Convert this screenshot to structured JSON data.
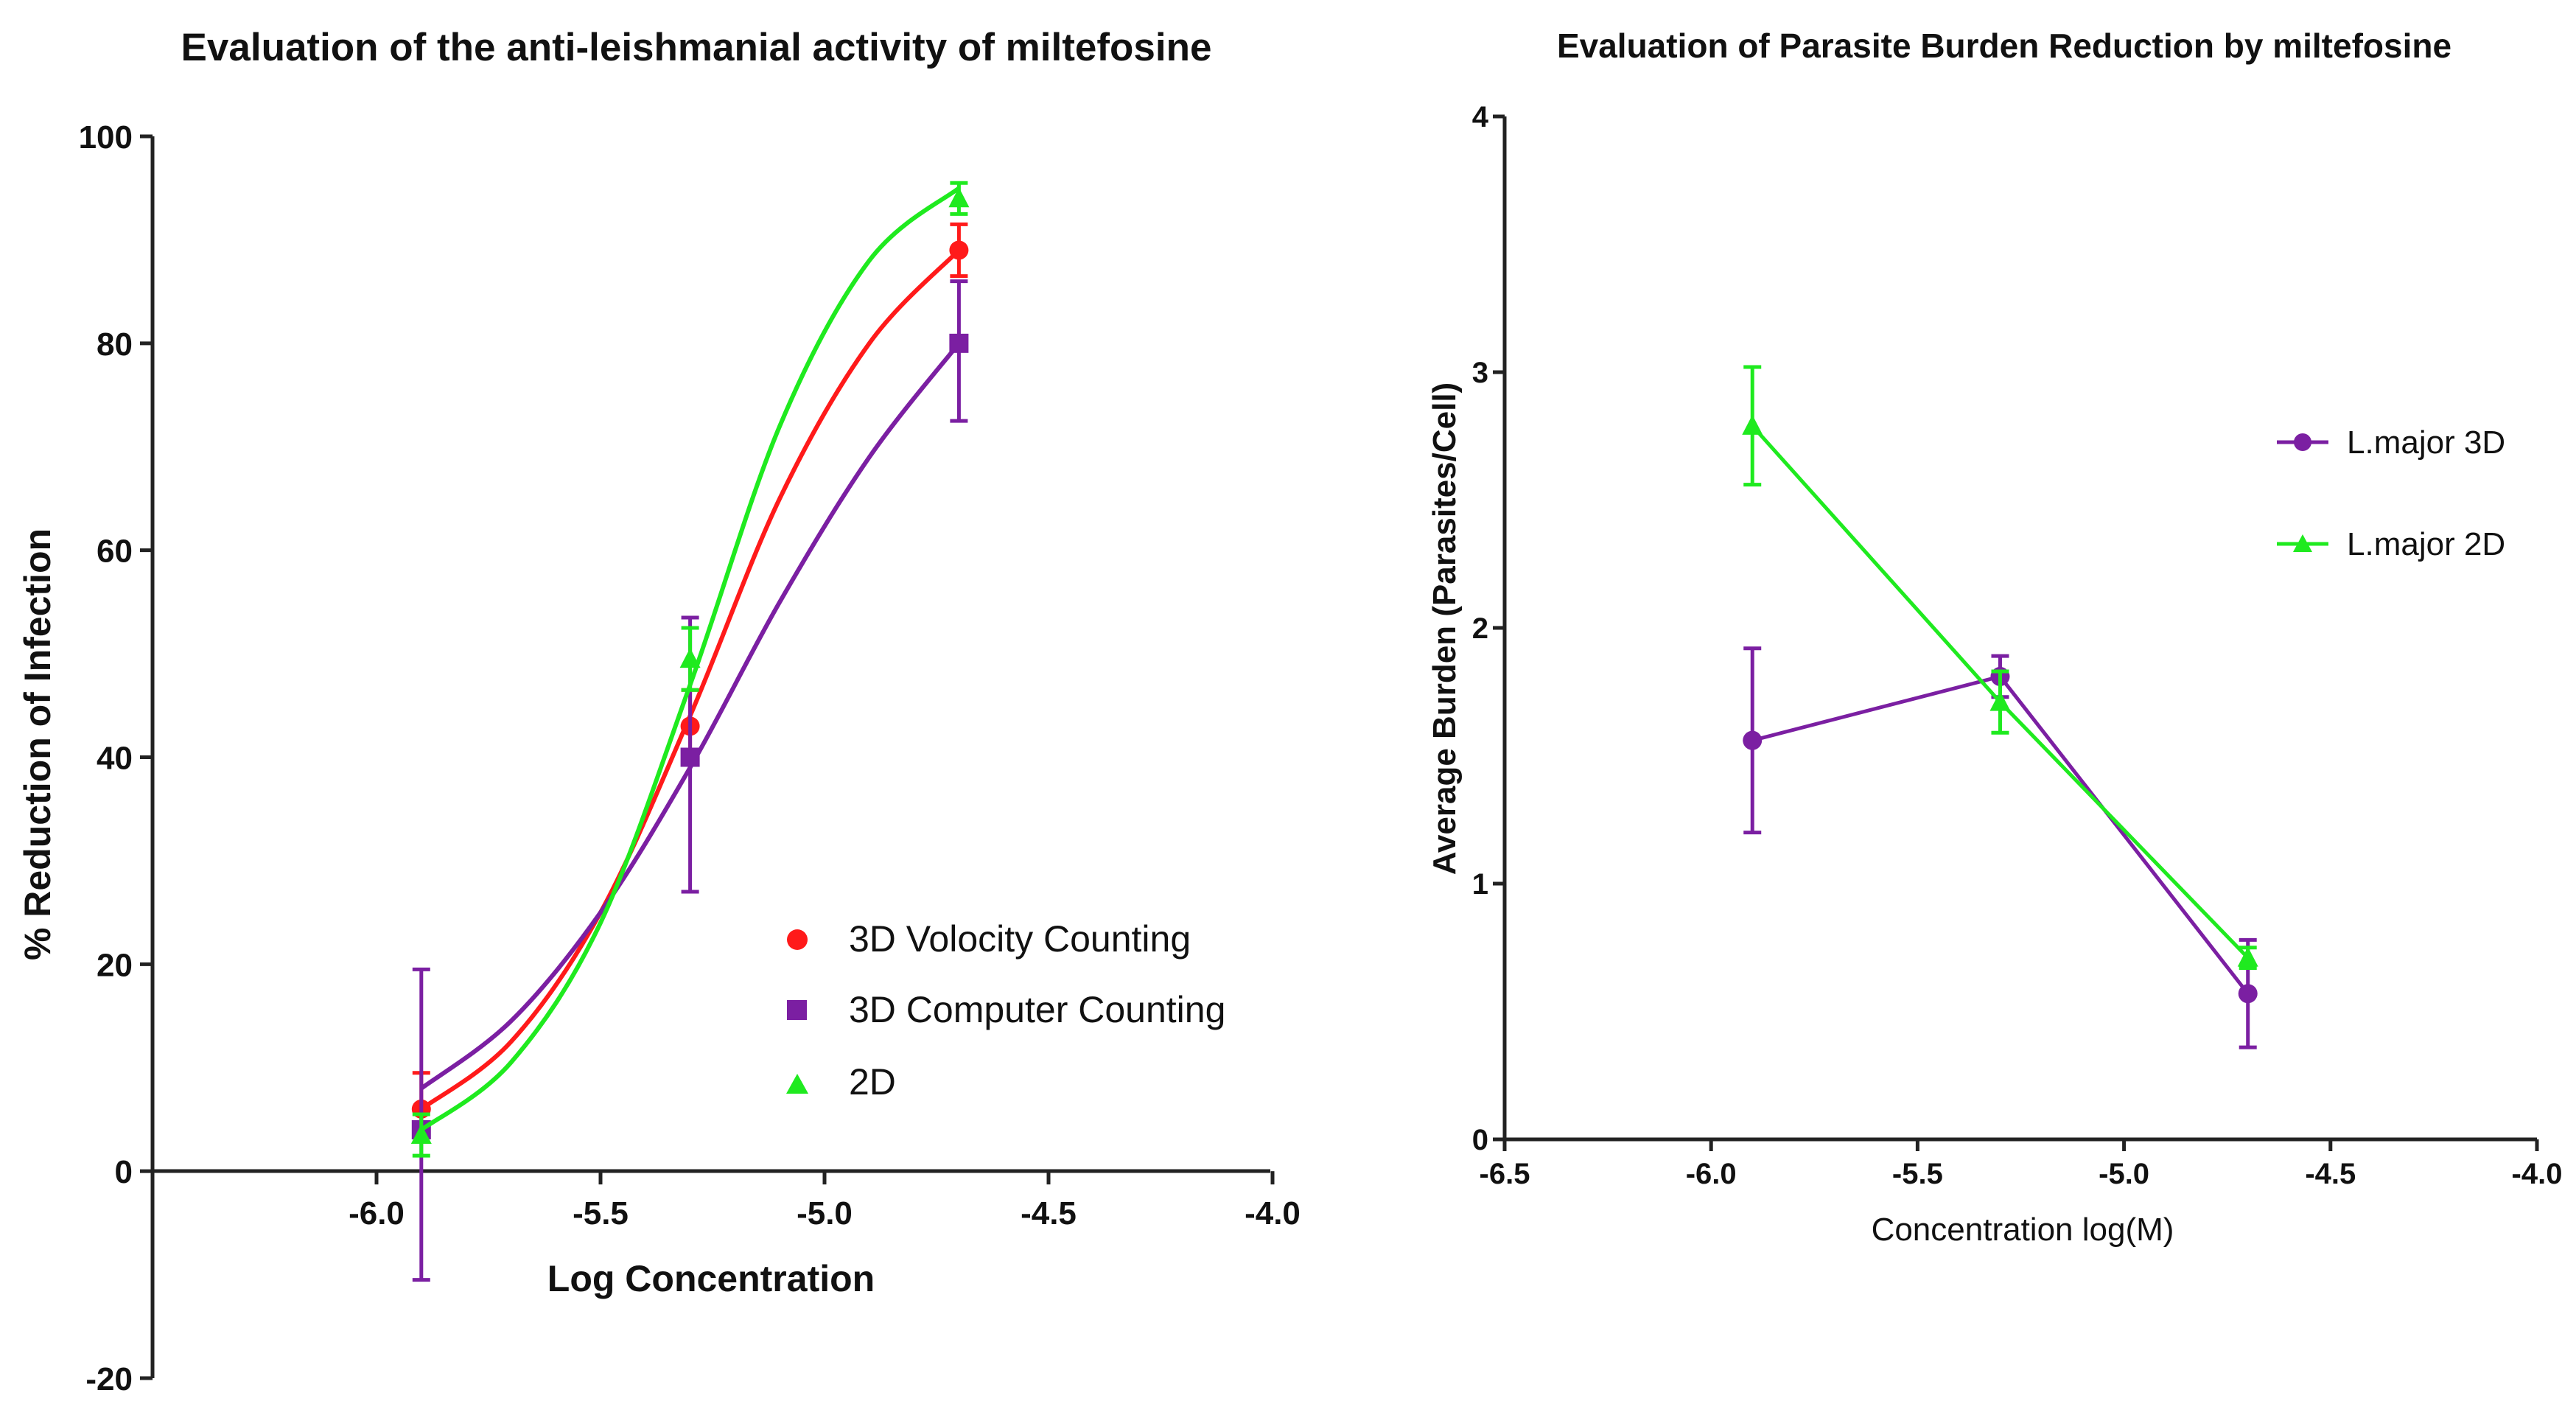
{
  "chart_data": [
    {
      "type": "scatter",
      "title": "Evaluation of the anti-leishmanial activity of miltefosine",
      "xlabel": "Log Concentration",
      "ylabel": "% Reduction of Infection",
      "xlim": [
        -6.5,
        -4.0
      ],
      "ylim": [
        -20,
        100
      ],
      "x_ticks": [
        -6.0,
        -5.5,
        -5.0,
        -4.5,
        -4.0
      ],
      "y_ticks": [
        -20,
        0,
        20,
        40,
        60,
        80,
        100
      ],
      "x_tick_labels": [
        "-6.0",
        "-5.5",
        "-5.0",
        "-4.5",
        "-4.0"
      ],
      "y_tick_labels": [
        "-20",
        "0",
        "20",
        "40",
        "60",
        "80",
        "100"
      ],
      "grid": false,
      "legend_position": "bottom-right",
      "fit": "sigmoidal dose-response",
      "series": [
        {
          "name": "3D Volocity Counting",
          "color": "#ff1a1a",
          "marker": "circle",
          "x": [
            -5.9,
            -5.3,
            -4.7
          ],
          "y": [
            6,
            43,
            89
          ],
          "err_low": [
            2,
            3,
            2.5
          ],
          "err_high": [
            3.5,
            3.5,
            2.5
          ],
          "curve": [
            -5.9,
            -5.7,
            -5.5,
            -5.3,
            -5.1,
            -4.9,
            -4.7
          ],
          "curve_y": [
            6,
            12.5,
            25,
            44,
            65,
            80,
            89
          ]
        },
        {
          "name": "3D Computer Counting",
          "color": "#7b1fa2",
          "marker": "square",
          "x": [
            -5.9,
            -5.3,
            -4.7
          ],
          "y": [
            4,
            40,
            80
          ],
          "err_low": [
            14.5,
            13,
            7.5
          ],
          "err_high": [
            15.5,
            13.5,
            6
          ],
          "curve": [
            -5.9,
            -5.7,
            -5.5,
            -5.3,
            -5.1,
            -4.9,
            -4.7
          ],
          "curve_y": [
            8,
            14.5,
            25,
            39,
            55,
            69,
            80
          ]
        },
        {
          "name": "2D",
          "color": "#1fea1f",
          "marker": "triangle",
          "x": [
            -5.9,
            -5.3,
            -4.7
          ],
          "y": [
            3.5,
            49.5,
            94
          ],
          "err_low": [
            2,
            3,
            1.5
          ],
          "err_high": [
            2,
            3,
            1.5
          ],
          "curve": [
            -5.9,
            -5.7,
            -5.5,
            -5.3,
            -5.1,
            -4.9,
            -4.7
          ],
          "curve_y": [
            4,
            10.5,
            24,
            47,
            72,
            88,
            95
          ]
        }
      ]
    },
    {
      "type": "line",
      "title": "Evaluation of Parasite Burden Reduction by miltefosine",
      "xlabel": "Concentration log(M)",
      "ylabel": "Average Burden (Parasites/Cell)",
      "xlim": [
        -6.5,
        -4.0
      ],
      "ylim": [
        0,
        4
      ],
      "x_ticks": [
        -6.5,
        -6.0,
        -5.5,
        -5.0,
        -4.5,
        -4.0
      ],
      "y_ticks": [
        0,
        1,
        2,
        3,
        4
      ],
      "x_tick_labels": [
        "-6.5",
        "-6.0",
        "-5.5",
        "-5.0",
        "-4.5",
        "-4.0"
      ],
      "y_tick_labels": [
        "0",
        "1",
        "2",
        "3",
        "4"
      ],
      "grid": false,
      "legend_position": "top-right",
      "series": [
        {
          "name": "L.major 3D",
          "color": "#7b1fa2",
          "marker": "circle",
          "x": [
            -5.9,
            -5.3,
            -4.7
          ],
          "y": [
            1.56,
            1.81,
            0.57
          ],
          "err": [
            0.36,
            0.08,
            0.21
          ]
        },
        {
          "name": "L.major 2D",
          "color": "#1fea1f",
          "marker": "triangle",
          "x": [
            -5.9,
            -5.3,
            -4.7
          ],
          "y": [
            2.79,
            1.71,
            0.71
          ],
          "err": [
            0.23,
            0.12,
            0.04
          ]
        }
      ]
    }
  ]
}
